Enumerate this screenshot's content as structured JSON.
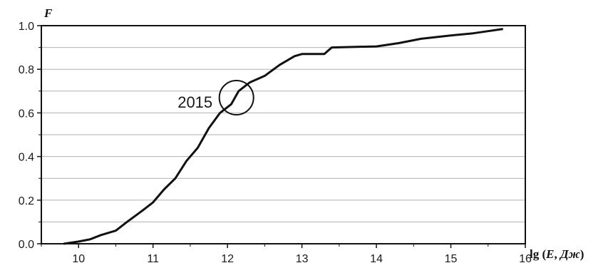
{
  "chart_data": {
    "type": "line",
    "title": "",
    "xlabel": "lg (E, Дж)",
    "xlabel_parts": [
      "lg (",
      "E",
      ", ",
      "Дж",
      ")"
    ],
    "ylabel": "F",
    "xlim": [
      9.5,
      16
    ],
    "ylim": [
      0,
      1
    ],
    "x_ticks": [
      "10",
      "11",
      "12",
      "13",
      "14",
      "15",
      "16"
    ],
    "y_ticks": [
      "0.0",
      "0.2",
      "0.4",
      "0.6",
      "0.8",
      "1.0"
    ],
    "grid": "horizontal",
    "annotation": {
      "text": "2015",
      "x": 12.12,
      "y": 0.67
    },
    "series": [
      {
        "values": [
          {
            "x": 9.8,
            "y": 0.0
          },
          {
            "x": 10.0,
            "y": 0.01
          },
          {
            "x": 10.15,
            "y": 0.02
          },
          {
            "x": 10.3,
            "y": 0.04
          },
          {
            "x": 10.5,
            "y": 0.06
          },
          {
            "x": 10.65,
            "y": 0.1
          },
          {
            "x": 10.85,
            "y": 0.15
          },
          {
            "x": 11.0,
            "y": 0.19
          },
          {
            "x": 11.15,
            "y": 0.25
          },
          {
            "x": 11.3,
            "y": 0.3
          },
          {
            "x": 11.45,
            "y": 0.38
          },
          {
            "x": 11.6,
            "y": 0.44
          },
          {
            "x": 11.75,
            "y": 0.53
          },
          {
            "x": 11.9,
            "y": 0.6
          },
          {
            "x": 12.05,
            "y": 0.64
          },
          {
            "x": 12.15,
            "y": 0.7
          },
          {
            "x": 12.3,
            "y": 0.74
          },
          {
            "x": 12.5,
            "y": 0.77
          },
          {
            "x": 12.7,
            "y": 0.82
          },
          {
            "x": 12.9,
            "y": 0.86
          },
          {
            "x": 13.0,
            "y": 0.87
          },
          {
            "x": 13.3,
            "y": 0.87
          },
          {
            "x": 13.4,
            "y": 0.9
          },
          {
            "x": 14.0,
            "y": 0.905
          },
          {
            "x": 14.3,
            "y": 0.92
          },
          {
            "x": 14.6,
            "y": 0.94
          },
          {
            "x": 15.0,
            "y": 0.955
          },
          {
            "x": 15.3,
            "y": 0.965
          },
          {
            "x": 15.5,
            "y": 0.975
          },
          {
            "x": 15.7,
            "y": 0.985
          }
        ]
      }
    ]
  }
}
